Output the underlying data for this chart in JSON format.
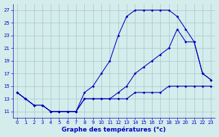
{
  "title": "Graphe des températures (°c)",
  "background_color": "#d4ecec",
  "grid_color": "#aacccc",
  "line_color": "#0000bb",
  "xlim": [
    -0.5,
    23.5
  ],
  "ylim": [
    10.0,
    28.0
  ],
  "yticks": [
    11,
    13,
    15,
    17,
    19,
    21,
    23,
    25,
    27
  ],
  "xticks": [
    0,
    1,
    2,
    3,
    4,
    5,
    6,
    7,
    8,
    9,
    10,
    11,
    12,
    13,
    14,
    15,
    16,
    17,
    18,
    19,
    20,
    21,
    22,
    23
  ],
  "line1_x": [
    0,
    1,
    2,
    3,
    4,
    5,
    6,
    7,
    8,
    9,
    10,
    11,
    12,
    13,
    14,
    15,
    16,
    17,
    18,
    19,
    20,
    21,
    22,
    23
  ],
  "line1_y": [
    14,
    13,
    12,
    12,
    11,
    11,
    11,
    11,
    14,
    15,
    17,
    19,
    23,
    26,
    27,
    27,
    27,
    27,
    27,
    26,
    24,
    22,
    17,
    16
  ],
  "line2_x": [
    0,
    1,
    2,
    3,
    4,
    5,
    6,
    7,
    8,
    9,
    10,
    11,
    12,
    13,
    14,
    15,
    16,
    17,
    18,
    19,
    20,
    21,
    22,
    23
  ],
  "line2_y": [
    14,
    13,
    12,
    12,
    11,
    11,
    11,
    11,
    13,
    13,
    13,
    13,
    13,
    13,
    14,
    14,
    14,
    14,
    15,
    15,
    15,
    15,
    15,
    15
  ],
  "line3_x": [
    0,
    1,
    2,
    3,
    4,
    5,
    6,
    7,
    8,
    9,
    10,
    11,
    12,
    13,
    14,
    15,
    16,
    17,
    18,
    19,
    20,
    21,
    22,
    23
  ],
  "line3_y": [
    14,
    13,
    12,
    12,
    11,
    11,
    11,
    11,
    13,
    13,
    13,
    13,
    14,
    15,
    17,
    18,
    19,
    20,
    21,
    24,
    22,
    22,
    17,
    16
  ],
  "xlabel_fontsize": 6.5,
  "tick_fontsize": 5.0,
  "linewidth": 0.8,
  "markersize": 2.0
}
